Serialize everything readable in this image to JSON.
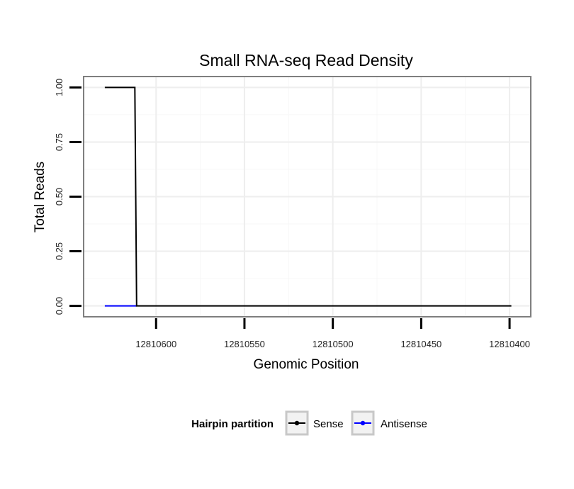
{
  "chart_data": {
    "type": "line",
    "title": "Small RNA-seq Read Density",
    "xlabel": "Genomic Position",
    "ylabel": "Total Reads",
    "x_reversed": true,
    "xlim": [
      12810641,
      12810388
    ],
    "ylim": [
      -0.05,
      1.05
    ],
    "x_ticks": [
      12810600,
      12810550,
      12810500,
      12810450,
      12810400
    ],
    "x_tick_labels": [
      "12810600",
      "12810550",
      "12810500",
      "12810450",
      "12810400"
    ],
    "y_ticks": [
      0,
      0.25,
      0.5,
      0.75,
      1
    ],
    "y_tick_labels": [
      "0.00",
      "0.25",
      "0.50",
      "0.75",
      "1.00"
    ],
    "grid": true,
    "series": [
      {
        "name": "Antisense",
        "color": "#0000ff",
        "x": [
          12810629,
          12810611
        ],
        "y": [
          0,
          0
        ]
      },
      {
        "name": "Sense",
        "color": "#000000",
        "x": [
          12810629,
          12810612,
          12810611,
          12810399
        ],
        "y": [
          1,
          1,
          0,
          0
        ]
      }
    ],
    "legend": {
      "title": "Hairpin partition",
      "position": "bottom",
      "entries": [
        {
          "label": "Sense",
          "color": "#000000"
        },
        {
          "label": "Antisense",
          "color": "#0000ff"
        }
      ]
    }
  }
}
